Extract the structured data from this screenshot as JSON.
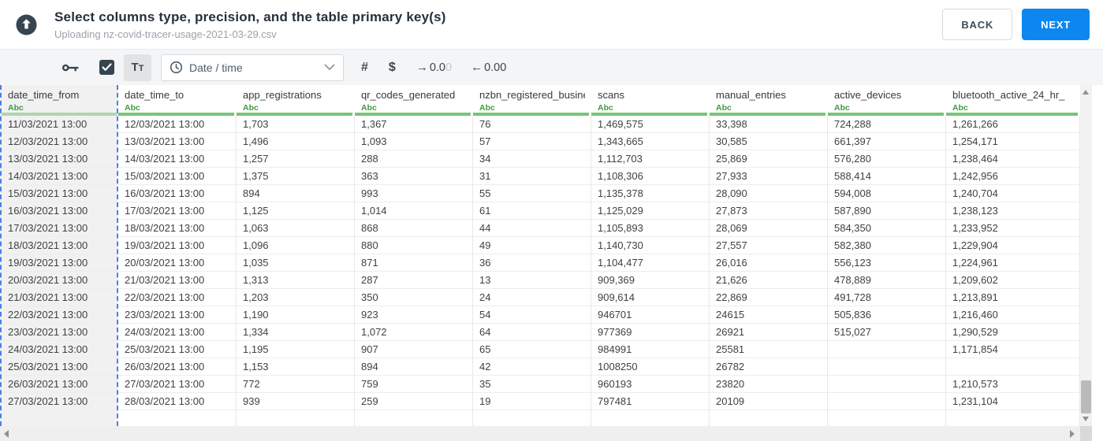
{
  "header": {
    "title": "Select columns type, precision, and the table primary key(s)",
    "subtitle": "Uploading nz-covid-tracer-usage-2021-03-29.csv",
    "back_label": "BACK",
    "next_label": "NEXT"
  },
  "toolbar": {
    "primary_key_checked": true,
    "text_type_label": "Tt",
    "type_select_value": "Date / time",
    "number_symbol": "#",
    "currency_symbol": "$",
    "decimal_increase": {
      "arrow": "→",
      "main": "0.0",
      "faded": "0"
    },
    "decimal_decrease": {
      "arrow": "←",
      "main": "0.00",
      "faded": ""
    }
  },
  "colors": {
    "accent_blue": "#0d86ef",
    "selection_dash_blue": "#4a80e8",
    "type_green": "#3f9b41",
    "column_bar_green": "#79c479",
    "selected_bar_green": "#b0d5ab",
    "icon_slate": "#36454f"
  },
  "table": {
    "selected_column": "date_time_from",
    "columns": [
      {
        "name": "date_time_from",
        "type_label": "Abc",
        "selected": true
      },
      {
        "name": "date_time_to",
        "type_label": "Abc",
        "selected": false
      },
      {
        "name": "app_registrations",
        "type_label": "Abc",
        "selected": false
      },
      {
        "name": "qr_codes_generated",
        "type_label": "Abc",
        "selected": false
      },
      {
        "name": "nzbn_registered_busine",
        "type_label": "Abc",
        "selected": false
      },
      {
        "name": "scans",
        "type_label": "Abc",
        "selected": false
      },
      {
        "name": "manual_entries",
        "type_label": "Abc",
        "selected": false
      },
      {
        "name": "active_devices",
        "type_label": "Abc",
        "selected": false
      },
      {
        "name": "bluetooth_active_24_hr_",
        "type_label": "Abc",
        "selected": false
      }
    ],
    "rows": [
      [
        "11/03/2021 13:00",
        "12/03/2021 13:00",
        "1,703",
        "1,367",
        "76",
        "1,469,575",
        "33,398",
        "724,288",
        "1,261,266"
      ],
      [
        "12/03/2021 13:00",
        "13/03/2021 13:00",
        "1,496",
        "1,093",
        "57",
        "1,343,665",
        "30,585",
        "661,397",
        "1,254,171"
      ],
      [
        "13/03/2021 13:00",
        "14/03/2021 13:00",
        "1,257",
        "288",
        "34",
        "1,112,703",
        "25,869",
        "576,280",
        "1,238,464"
      ],
      [
        "14/03/2021 13:00",
        "15/03/2021 13:00",
        "1,375",
        "363",
        "31",
        "1,108,306",
        "27,933",
        "588,414",
        "1,242,956"
      ],
      [
        "15/03/2021 13:00",
        "16/03/2021 13:00",
        "894",
        "993",
        "55",
        "1,135,378",
        "28,090",
        "594,008",
        "1,240,704"
      ],
      [
        "16/03/2021 13:00",
        "17/03/2021 13:00",
        "1,125",
        "1,014",
        "61",
        "1,125,029",
        "27,873",
        "587,890",
        "1,238,123"
      ],
      [
        "17/03/2021 13:00",
        "18/03/2021 13:00",
        "1,063",
        "868",
        "44",
        "1,105,893",
        "28,069",
        "584,350",
        "1,233,952"
      ],
      [
        "18/03/2021 13:00",
        "19/03/2021 13:00",
        "1,096",
        "880",
        "49",
        "1,140,730",
        "27,557",
        "582,380",
        "1,229,904"
      ],
      [
        "19/03/2021 13:00",
        "20/03/2021 13:00",
        "1,035",
        "871",
        "36",
        "1,104,477",
        "26,016",
        "556,123",
        "1,224,961"
      ],
      [
        "20/03/2021 13:00",
        "21/03/2021 13:00",
        "1,313",
        "287",
        "13",
        "909,369",
        "21,626",
        "478,889",
        "1,209,602"
      ],
      [
        "21/03/2021 13:00",
        "22/03/2021 13:00",
        "1,203",
        "350",
        "24",
        "909,614",
        "22,869",
        "491,728",
        "1,213,891"
      ],
      [
        "22/03/2021 13:00",
        "23/03/2021 13:00",
        "1,190",
        "923",
        "54",
        "946701",
        "24615",
        "505,836",
        "1,216,460"
      ],
      [
        "23/03/2021 13:00",
        "24/03/2021 13:00",
        "1,334",
        "1,072",
        "64",
        "977369",
        "26921",
        "515,027",
        "1,290,529"
      ],
      [
        "24/03/2021 13:00",
        "25/03/2021 13:00",
        "1,195",
        "907",
        "65",
        "984991",
        "25581",
        "",
        "1,171,854"
      ],
      [
        "25/03/2021 13:00",
        "26/03/2021 13:00",
        "1,153",
        "894",
        "42",
        "1008250",
        "26782",
        "",
        ""
      ],
      [
        "26/03/2021 13:00",
        "27/03/2021 13:00",
        "772",
        "759",
        "35",
        "960193",
        "23820",
        "",
        "1,210,573"
      ],
      [
        "27/03/2021 13:00",
        "28/03/2021 13:00",
        "939",
        "259",
        "19",
        "797481",
        "20109",
        "",
        "1,231,104"
      ]
    ]
  }
}
